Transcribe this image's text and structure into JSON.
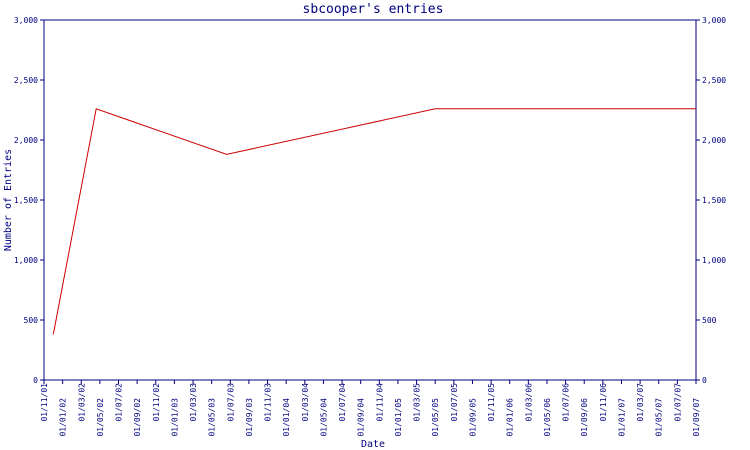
{
  "chart_data": {
    "type": "line",
    "title": "sbcooper's entries",
    "xlabel": "Date",
    "ylabel": "Number of Entries",
    "ylim": [
      0,
      3000
    ],
    "y_ticks": [
      "0",
      "500",
      "1,000",
      "1,500",
      "2,000",
      "2,500",
      "3,000"
    ],
    "y_tick_values": [
      0,
      500,
      1000,
      1500,
      2000,
      2500,
      3000
    ],
    "categories": [
      "01/11/01",
      "01/01/02",
      "01/03/02",
      "01/05/02",
      "01/07/02",
      "01/09/02",
      "01/11/02",
      "01/01/03",
      "01/03/03",
      "01/05/03",
      "01/07/03",
      "01/09/03",
      "01/11/03",
      "01/01/04",
      "01/03/04",
      "01/05/04",
      "01/07/04",
      "01/09/04",
      "01/11/04",
      "01/01/05",
      "01/03/05",
      "01/05/05",
      "01/07/05",
      "01/09/05",
      "01/11/05",
      "01/01/06",
      "01/03/06",
      "01/05/06",
      "01/07/06",
      "01/09/06",
      "01/11/06",
      "01/01/07",
      "01/03/07",
      "01/05/07",
      "01/07/07",
      "01/09/07"
    ],
    "series": [
      {
        "color": "#cc0000",
        "points": [
          {
            "x": 0.5,
            "y": 380
          },
          {
            "x": 2.8,
            "y": 2260
          },
          {
            "x": 9.8,
            "y": 1880
          },
          {
            "x": 21.0,
            "y": 2260
          },
          {
            "x": 35.0,
            "y": 2260
          }
        ]
      }
    ],
    "grid": false,
    "secondary_y_axis": true
  },
  "colors": {
    "axis": "#000080",
    "line": "#cc0000"
  }
}
